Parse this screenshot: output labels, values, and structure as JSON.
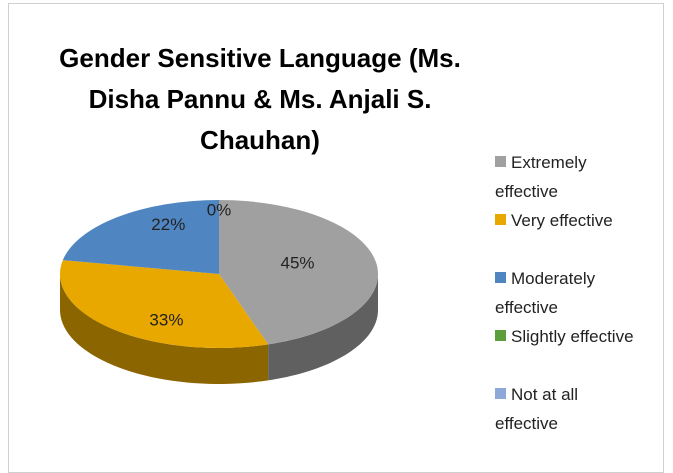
{
  "chart_data": {
    "type": "pie",
    "title": "Gender Sensitive Language (Ms. Disha Pannu & Ms. Anjali S. Chauhan)",
    "categories": [
      "Extremely effective",
      "Very effective",
      "Moderately effective",
      "Slightly effective",
      "Not at all effective"
    ],
    "values": [
      45,
      33,
      22,
      0,
      0
    ],
    "value_labels": [
      "45%",
      "33%",
      "22%",
      "0%",
      null
    ],
    "colors": [
      "#a0a0a0",
      "#e8a800",
      "#4f86c2",
      "#5d9e3c",
      "#8ea8d8"
    ],
    "legend": "right"
  }
}
